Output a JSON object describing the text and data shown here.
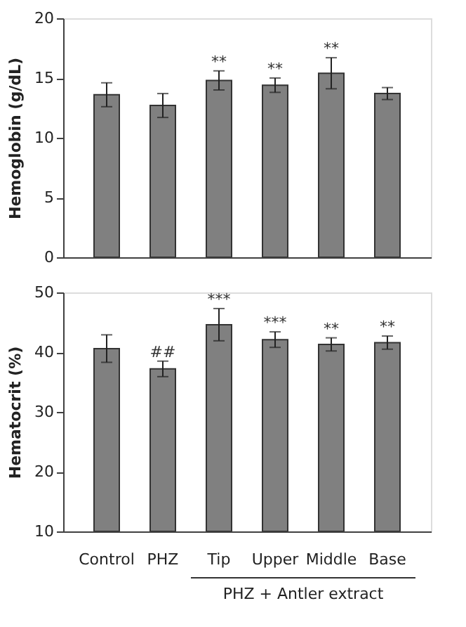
{
  "chart_data": [
    {
      "type": "bar",
      "ylabel": "Hemoglobin (g/dL)",
      "categories": [
        "Control",
        "PHZ",
        "Tip",
        "Upper",
        "Middle",
        "Base"
      ],
      "tick_labels": "y",
      "series": [
        {
          "color": "#808080",
          "values": [
            13.6,
            12.7,
            14.8,
            14.4,
            15.4,
            13.7
          ],
          "errors": [
            1.0,
            1.0,
            0.8,
            0.6,
            1.3,
            0.5
          ]
        }
      ],
      "ylim": [
        0,
        20
      ],
      "yticks": [
        0,
        5,
        10,
        15,
        20
      ],
      "grid": false,
      "annotations": [
        {
          "text": "**",
          "x": "Tip",
          "y": 14.8
        },
        {
          "text": "**",
          "x": "Upper",
          "y": 14.4
        },
        {
          "text": "**",
          "x": "Middle",
          "y": 15.4
        }
      ]
    },
    {
      "type": "bar",
      "ylabel": "Hematocrit (%)",
      "categories": [
        "Control",
        "PHZ",
        "Tip",
        "Upper",
        "Middle",
        "Base"
      ],
      "series": [
        {
          "color": "#808080",
          "values": [
            40.6,
            37.2,
            44.6,
            42.1,
            41.3,
            41.6
          ],
          "errors": [
            2.3,
            1.3,
            2.7,
            1.3,
            1.1,
            1.1
          ]
        }
      ],
      "ylim": [
        10,
        50
      ],
      "yticks": [
        10,
        20,
        30,
        40,
        50
      ],
      "grid": false,
      "annotations": [
        {
          "text": "##",
          "x": "PHZ",
          "y": 37.2
        },
        {
          "text": "***",
          "x": "Tip",
          "y": 44.6
        },
        {
          "text": "***",
          "x": "Upper",
          "y": 42.1
        },
        {
          "text": "**",
          "x": "Middle",
          "y": 41.3
        },
        {
          "text": "**",
          "x": "Base",
          "y": 41.6
        },
        "PHZ + Antler extract"
      ]
    }
  ]
}
